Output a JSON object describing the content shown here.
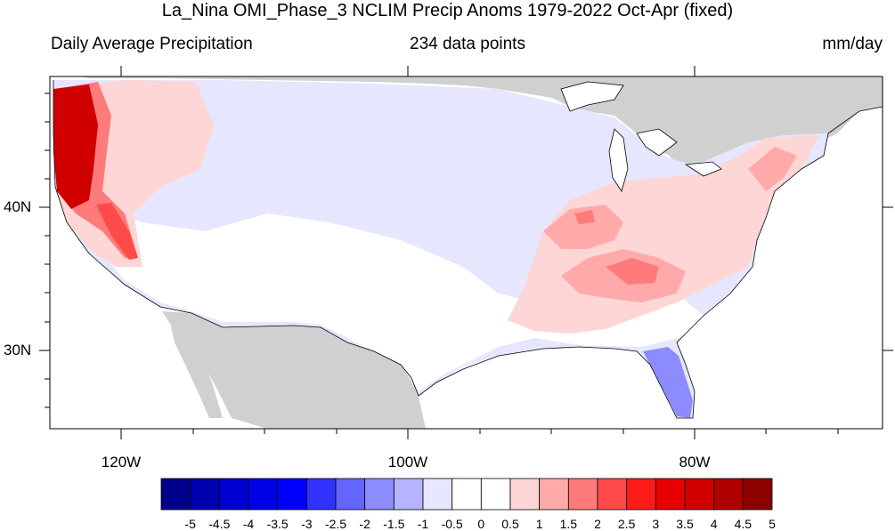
{
  "title": "La_Nina OMI_Phase_3 NCLIM Precip Anoms 1979-2022 Oct-Apr (fixed)",
  "subtitle_left": "Daily Average Precipitation",
  "subtitle_center": "234 data points",
  "subtitle_right": "mm/day",
  "lat_labels": [
    "40N",
    "30N"
  ],
  "lon_labels": [
    "120W",
    "100W",
    "80W"
  ],
  "colorbar": {
    "labels": [
      "-5",
      "-4.5",
      "-4",
      "-3.5",
      "-3",
      "-2.5",
      "-2",
      "-1.5",
      "-1",
      "-0.5",
      "0",
      "0.5",
      "1",
      "1.5",
      "2",
      "2.5",
      "3",
      "3.5",
      "4",
      "4.5",
      "5"
    ],
    "colors": [
      "#00008c",
      "#0000b0",
      "#0000d0",
      "#0000e8",
      "#0000ff",
      "#3232ff",
      "#6464ff",
      "#8c8cff",
      "#b4b4ff",
      "#e6e6ff",
      "#ffffff",
      "#ffffff",
      "#ffd6d6",
      "#ffaaaa",
      "#ff7a7a",
      "#ff4a4a",
      "#ff1a1a",
      "#e80000",
      "#d00000",
      "#b00000",
      "#8c0000"
    ]
  },
  "colors": {
    "land_outside": "#d0d0d0",
    "ocean": "#ffffff",
    "neutral_fill": "#ffffff",
    "light_blue": "#e6e6ff",
    "mid_blue": "#8c8cff",
    "light_red": "#ffd6d6",
    "mid_red": "#ff7a7a",
    "dark_red": "#d00000"
  }
}
